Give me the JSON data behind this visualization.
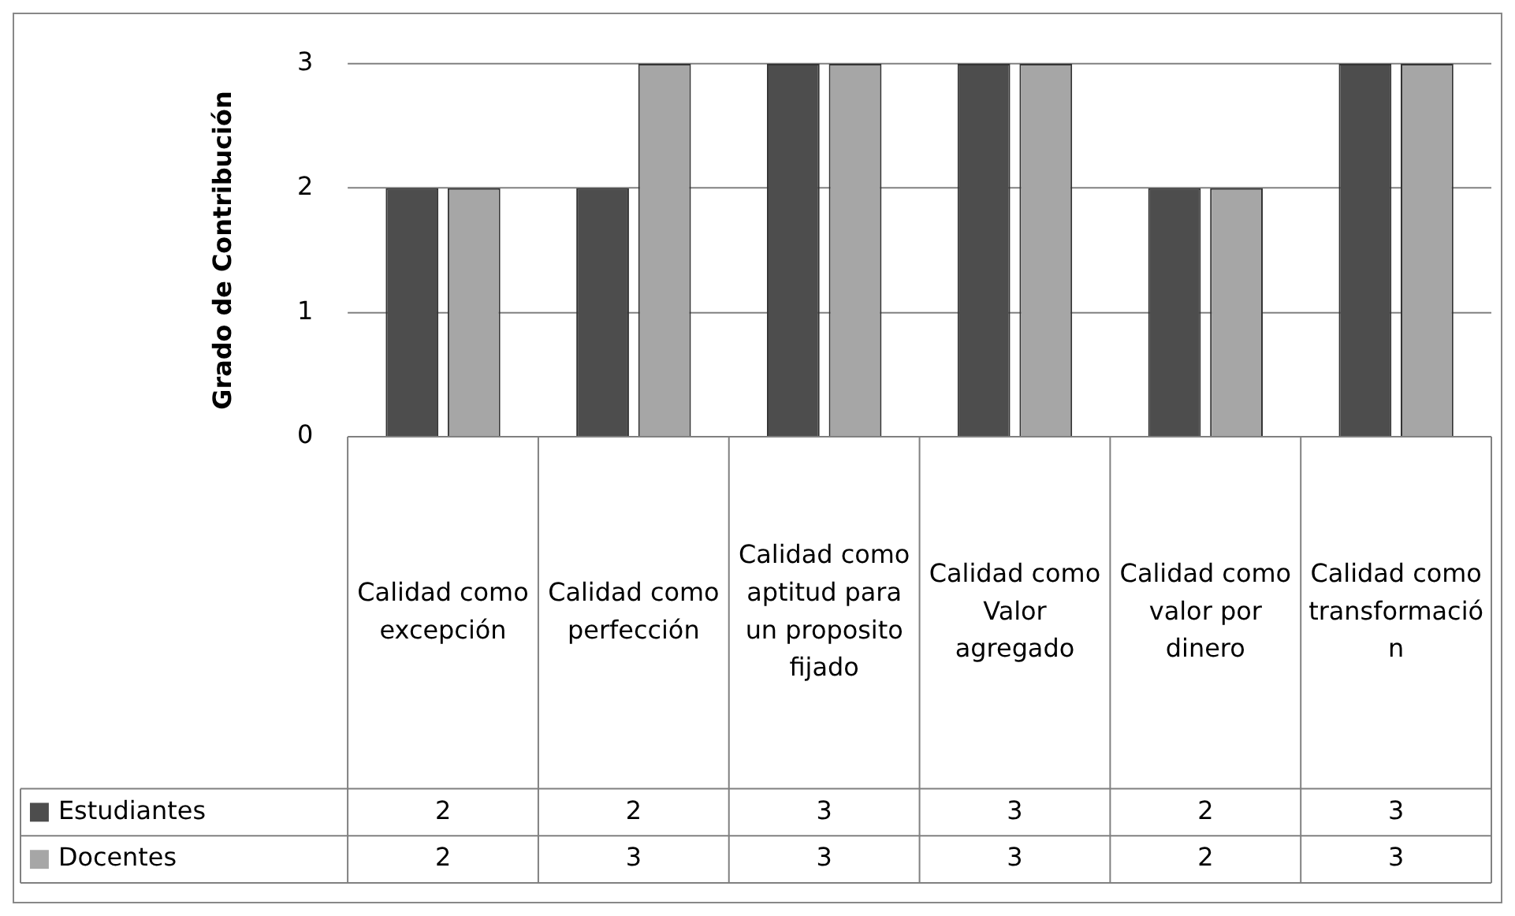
{
  "chart_data": {
    "type": "bar",
    "ylabel": "Grado de Contribución",
    "categories": [
      "Calidad como excepción",
      "Calidad como perfección",
      "Calidad como aptitud para un proposito fijado",
      "Calidad como Valor agregado",
      "Calidad como valor por dinero",
      "Calidad como transformación"
    ],
    "series": [
      {
        "name": "Estudiantes",
        "color": "#4d4d4d",
        "values": [
          2,
          2,
          3,
          3,
          2,
          3
        ]
      },
      {
        "name": "Docentes",
        "color": "#a6a6a6",
        "values": [
          2,
          3,
          3,
          3,
          2,
          3
        ]
      }
    ],
    "ylim": [
      0,
      3
    ],
    "yticks": [
      0,
      1,
      2,
      3
    ],
    "grid": "y",
    "legend": "bottom left",
    "data_labels": true
  }
}
